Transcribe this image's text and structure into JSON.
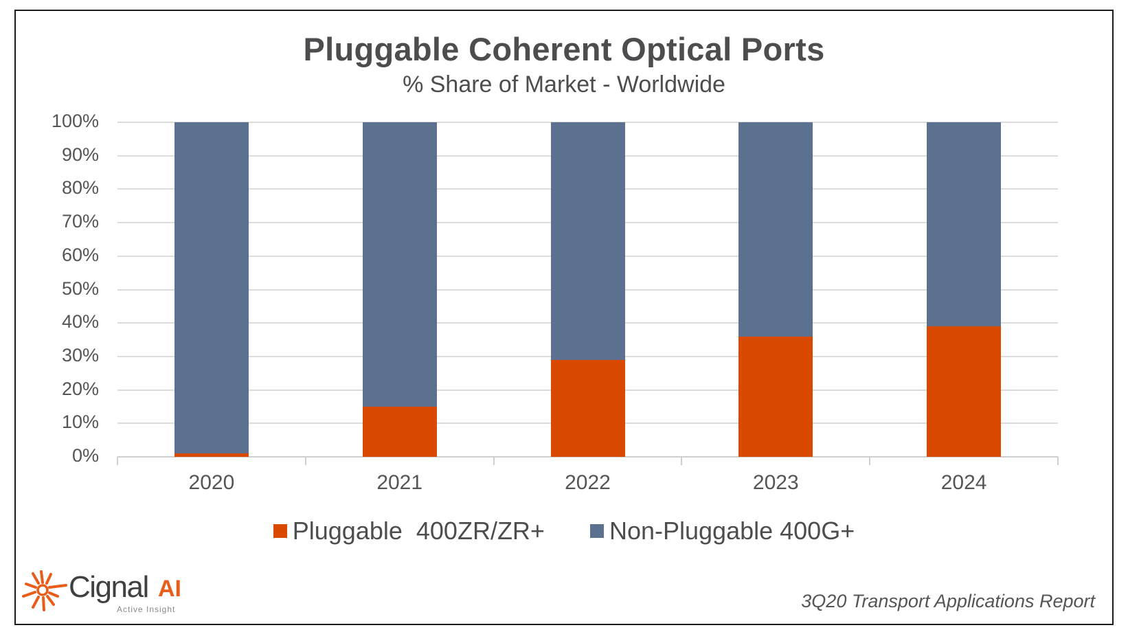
{
  "title": "Pluggable Coherent Optical Ports",
  "subtitle": "% Share of Market - Worldwide",
  "colors": {
    "pluggable": "#d94a00",
    "non_pluggable": "#5c7090",
    "grid": "#dcdcdc",
    "text": "#4d4d4f"
  },
  "y_axis": {
    "ticks": [
      "0%",
      "10%",
      "20%",
      "30%",
      "40%",
      "50%",
      "60%",
      "70%",
      "80%",
      "90%",
      "100%"
    ]
  },
  "legend": {
    "items": [
      {
        "label": "Pluggable  400ZR/ZR+",
        "color": "#d94a00"
      },
      {
        "label": "Non-Pluggable 400G+",
        "color": "#5c7090"
      }
    ]
  },
  "branding": {
    "logo_name": "Cignal",
    "logo_suffix": "AI",
    "logo_tagline": "Active Insight",
    "logo_icon": "sunburst-icon"
  },
  "footer": "3Q20 Transport Applications Report",
  "chart_data": {
    "type": "bar",
    "stacked": true,
    "title": "Pluggable Coherent Optical Ports",
    "subtitle": "% Share of Market - Worldwide",
    "xlabel": "",
    "ylabel": "",
    "categories": [
      "2020",
      "2021",
      "2022",
      "2023",
      "2024"
    ],
    "series": [
      {
        "name": "Pluggable  400ZR/ZR+",
        "color": "#d94a00",
        "values": [
          1,
          15,
          29,
          36,
          39
        ]
      },
      {
        "name": "Non-Pluggable 400G+",
        "color": "#5c7090",
        "values": [
          99,
          85,
          71,
          64,
          61
        ]
      }
    ],
    "ylim": [
      0,
      100
    ],
    "y_tick_format": "percent",
    "y_ticks": [
      0,
      10,
      20,
      30,
      40,
      50,
      60,
      70,
      80,
      90,
      100
    ],
    "grid": true,
    "legend_position": "bottom"
  }
}
